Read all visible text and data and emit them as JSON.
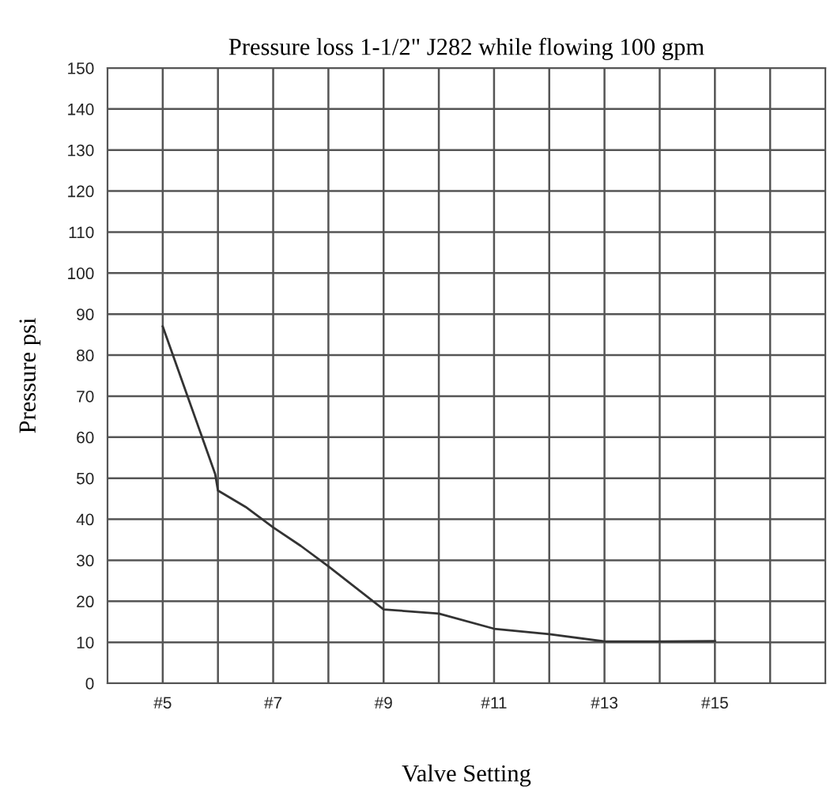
{
  "chart_data": {
    "type": "line",
    "title": "Pressure loss 1-1/2\" J282 while flowing 100 gpm",
    "xlabel": "Valve Setting",
    "ylabel": "Pressure psi",
    "x": [
      5,
      5.95,
      6,
      6.5,
      7,
      7.5,
      8,
      9,
      10,
      11,
      12,
      13,
      14,
      15
    ],
    "series": [
      {
        "color": "#333333",
        "values": [
          87,
          51,
          47,
          43,
          38,
          33.5,
          28.5,
          18,
          17,
          13.3,
          12,
          10.2,
          10.2,
          10.3
        ]
      }
    ],
    "xlim": [
      4,
      17
    ],
    "ylim": [
      0,
      150
    ],
    "xticks": [
      {
        "value": 5,
        "label": "#5"
      },
      {
        "value": 6,
        "label": null
      },
      {
        "value": 7,
        "label": "#7"
      },
      {
        "value": 8,
        "label": null
      },
      {
        "value": 9,
        "label": "#9"
      },
      {
        "value": 10,
        "label": null
      },
      {
        "value": 11,
        "label": "#11"
      },
      {
        "value": 12,
        "label": null
      },
      {
        "value": 13,
        "label": "#13"
      },
      {
        "value": 14,
        "label": null
      },
      {
        "value": 15,
        "label": "#15"
      },
      {
        "value": 16,
        "label": null
      }
    ],
    "yticks": [
      0,
      10,
      20,
      30,
      40,
      50,
      60,
      70,
      80,
      90,
      100,
      110,
      120,
      130,
      140,
      150
    ],
    "grid": true,
    "marker": "none",
    "line_style": "solid"
  }
}
